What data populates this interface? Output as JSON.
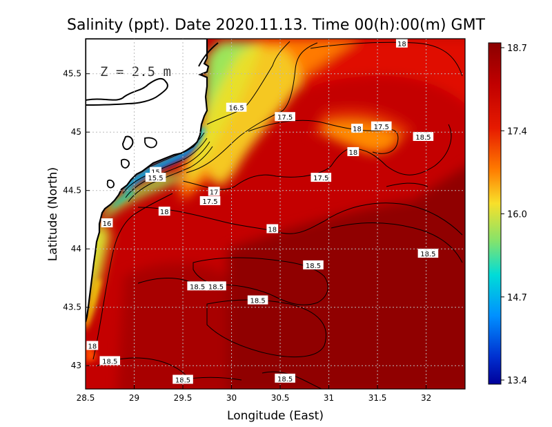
{
  "title": "Salinity (ppt). Date 2020.11.13. Time 00(h):00(m) GMT",
  "depth_label": "Z = 2.5 m",
  "xlabel": "Longitude (East)",
  "ylabel": "Latitude (North)",
  "x_ticks": [
    "28.5",
    "29",
    "29.5",
    "30",
    "30.5",
    "31",
    "31.5",
    "32"
  ],
  "y_ticks": [
    "43",
    "43.5",
    "44",
    "44.5",
    "45",
    "45.5"
  ],
  "colorbar": {
    "ticks": [
      "18.7",
      "17.4",
      "16.0",
      "14.7",
      "13.4"
    ],
    "colors": [
      "#8b0000",
      "#d30000",
      "#ff5500",
      "#ffa500",
      "#f5e62a",
      "#7ee36a",
      "#00d8e8",
      "#0080ff",
      "#0000b0"
    ]
  },
  "chart_data": {
    "type": "heatmap",
    "title": "Salinity (ppt). Date 2020.11.13. Time 00(h):00(m) GMT",
    "xlabel": "Longitude (East)",
    "ylabel": "Latitude (North)",
    "xlim": [
      28.5,
      32.4
    ],
    "ylim": [
      42.8,
      45.8
    ],
    "value_range": [
      13.4,
      18.7
    ],
    "units": "ppt",
    "contour_labels": [
      {
        "text": "18",
        "lon": 31.75,
        "lat": 45.76
      },
      {
        "text": "16.5",
        "lon": 30.05,
        "lat": 45.21
      },
      {
        "text": "17.5",
        "lon": 30.55,
        "lat": 45.13
      },
      {
        "text": "18",
        "lon": 31.29,
        "lat": 45.03
      },
      {
        "text": "17.5",
        "lon": 31.54,
        "lat": 45.05
      },
      {
        "text": "18.5",
        "lon": 31.97,
        "lat": 44.96
      },
      {
        "text": "18",
        "lon": 31.25,
        "lat": 44.83
      },
      {
        "text": "15",
        "lon": 29.22,
        "lat": 44.66
      },
      {
        "text": "15.5",
        "lon": 29.22,
        "lat": 44.61
      },
      {
        "text": "17.5",
        "lon": 30.92,
        "lat": 44.61
      },
      {
        "text": "17",
        "lon": 29.82,
        "lat": 44.49
      },
      {
        "text": "17.5",
        "lon": 29.78,
        "lat": 44.41
      },
      {
        "text": "18",
        "lon": 29.31,
        "lat": 44.32
      },
      {
        "text": "16",
        "lon": 28.72,
        "lat": 44.22
      },
      {
        "text": "18",
        "lon": 30.42,
        "lat": 44.17
      },
      {
        "text": "18.5",
        "lon": 32.02,
        "lat": 43.96
      },
      {
        "text": "18.5",
        "lon": 30.84,
        "lat": 43.86
      },
      {
        "text": "18.5",
        "lon": 29.65,
        "lat": 43.68
      },
      {
        "text": "18.5",
        "lon": 29.84,
        "lat": 43.68
      },
      {
        "text": "18.5",
        "lon": 30.27,
        "lat": 43.56
      },
      {
        "text": "18",
        "lon": 28.57,
        "lat": 43.17
      },
      {
        "text": "18.5",
        "lon": 28.75,
        "lat": 43.04
      },
      {
        "text": "18.5",
        "lon": 29.5,
        "lat": 42.88
      },
      {
        "text": "18.5",
        "lon": 30.55,
        "lat": 42.89
      }
    ]
  }
}
